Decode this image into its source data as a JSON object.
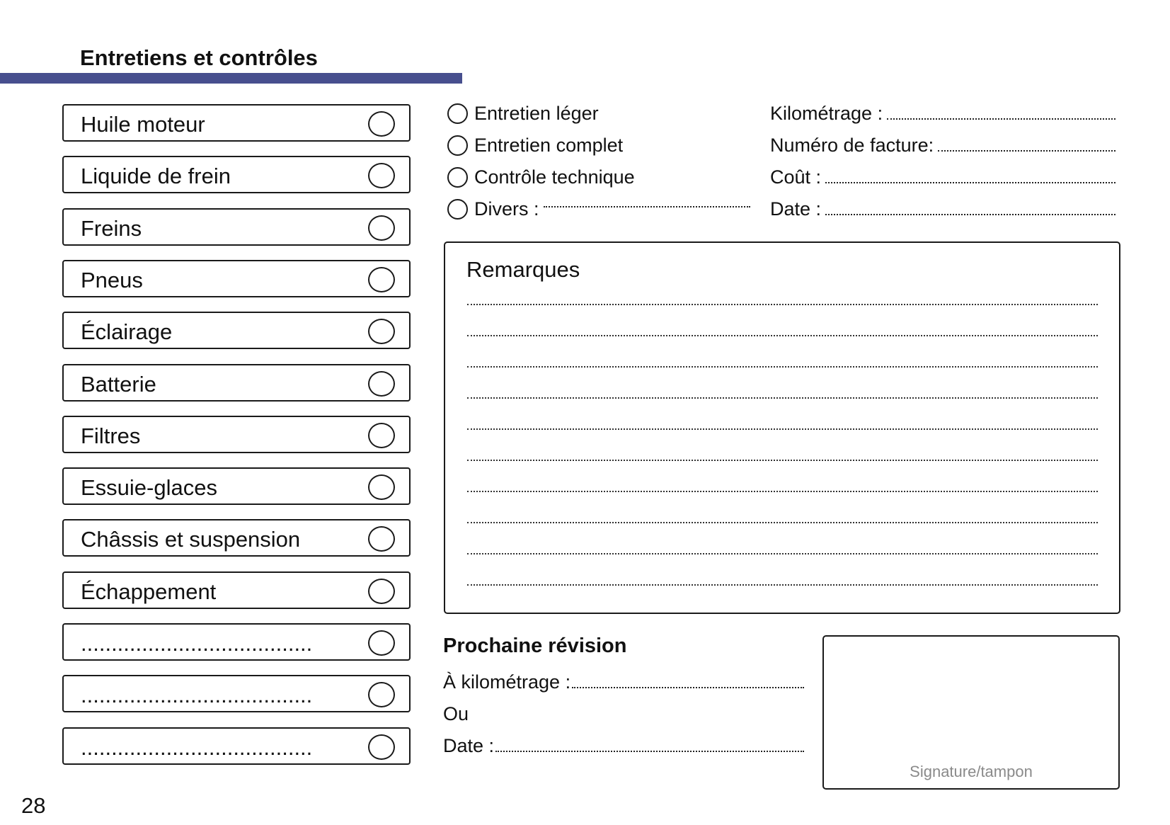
{
  "header": {
    "title": "Entretiens et contrôles",
    "accent_color": "#474f8e"
  },
  "checklist": [
    {
      "label": "Huile moteur"
    },
    {
      "label": "Liquide de frein"
    },
    {
      "label": "Freins"
    },
    {
      "label": "Pneus"
    },
    {
      "label": "Éclairage"
    },
    {
      "label": "Batterie"
    },
    {
      "label": "Filtres"
    },
    {
      "label": "Essuie-glaces"
    },
    {
      "label": "Châssis et suspension"
    },
    {
      "label": "Échappement"
    },
    {
      "label": "......................................"
    },
    {
      "label": "......................................"
    },
    {
      "label": "......................................"
    }
  ],
  "service_types": [
    {
      "label": "Entretien léger"
    },
    {
      "label": "Entretien complet"
    },
    {
      "label": "Contrôle technique"
    },
    {
      "label": "Divers :"
    }
  ],
  "fields": [
    {
      "label": "Kilométrage :"
    },
    {
      "label": "Numéro de facture:"
    },
    {
      "label": "Coût :"
    },
    {
      "label": "Date :"
    }
  ],
  "remarks": {
    "title": "Remarques"
  },
  "next_service": {
    "title": "Prochaine révision",
    "km_label": "À kilométrage :",
    "or_label": "Ou",
    "date_label": "Date :"
  },
  "signature": {
    "label": "Signature/tampon"
  },
  "page_number": "28"
}
